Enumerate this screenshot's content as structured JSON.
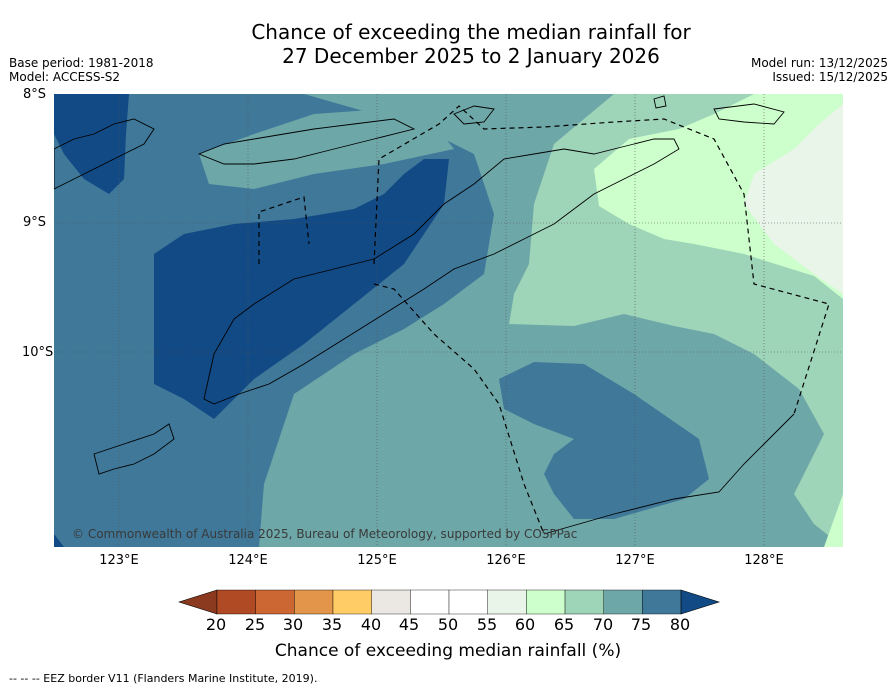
{
  "header": {
    "title_line1": "Chance of exceeding the median rainfall for",
    "title_line2": "27 December 2025 to 2 January 2026",
    "base_period": "Base period: 1981-2018",
    "model": "Model: ACCESS-S2",
    "model_run": "Model run: 13/12/2025",
    "issued": "Issued: 15/12/2025"
  },
  "map": {
    "lat_labels": [
      "8°S",
      "9°S",
      "10°S"
    ],
    "lon_labels": [
      "123°E",
      "124°E",
      "125°E",
      "126°E",
      "127°E",
      "128°E"
    ],
    "copyright": "© Commonwealth of Australia 2025, Bureau of Meteorology, supported by COSPPac"
  },
  "legend": {
    "labels": [
      "20",
      "25",
      "30",
      "35",
      "40",
      "45",
      "50",
      "55",
      "60",
      "65",
      "70",
      "75",
      "80"
    ],
    "colors": [
      "#8b3a1f",
      "#b04a25",
      "#cc6633",
      "#e3954a",
      "#ffcc66",
      "#ebe8e3",
      "#ffffff",
      "#ffffff",
      "#e8f5e8",
      "#ccffcc",
      "#9ed4b8",
      "#6ea7a8",
      "#3f7899",
      "#114a85"
    ],
    "title": "Chance of exceeding median rainfall (%)"
  },
  "footer": {
    "eez_note": "--  --  -- EEZ border V11 (Flanders Marine Institute, 2019)."
  }
}
